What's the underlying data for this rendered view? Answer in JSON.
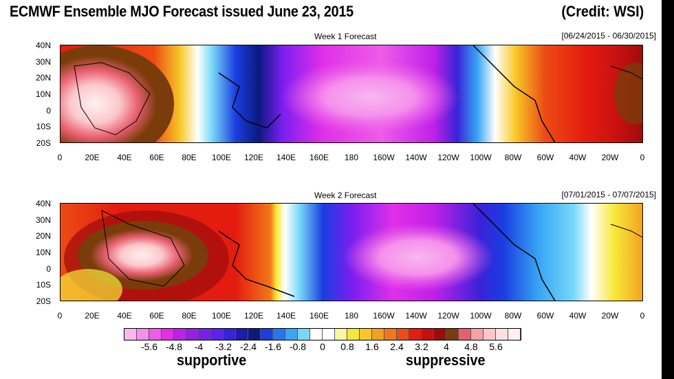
{
  "header": {
    "title": "ECMWF Ensemble MJO Forecast issued June 23, 2015",
    "credit": "(Credit: WSI)"
  },
  "panels": [
    {
      "title": "Week 1 Forecast",
      "date_range": "[06/24/2015 - 06/30/2015]"
    },
    {
      "title": "Week 2 Forecast",
      "date_range": "[07/01/2015 - 07/07/2015]"
    }
  ],
  "lat_labels": [
    "40N",
    "30N",
    "20N",
    "10N",
    "0",
    "10S",
    "20S"
  ],
  "lon_labels": [
    "0",
    "20E",
    "40E",
    "60E",
    "80E",
    "100E",
    "120E",
    "140E",
    "160E",
    "180",
    "160W",
    "140W",
    "120W",
    "100W",
    "80W",
    "60W",
    "40W",
    "20W",
    "0"
  ],
  "colorbar": {
    "labels": [
      "-5.6",
      "-4.8",
      "-4",
      "-3.2",
      "-2.4",
      "-1.6",
      "-0.8",
      "0",
      "0.8",
      "1.6",
      "2.4",
      "3.2",
      "4",
      "4.8",
      "5.6"
    ],
    "colors": [
      "#f8b8f0",
      "#f590ec",
      "#ee5ce8",
      "#e030e8",
      "#c020e8",
      "#9b1ee8",
      "#7a1ef0",
      "#5a22f0",
      "#3a22d8",
      "#1c1ca8",
      "#0a1a80",
      "#1a3ee0",
      "#2a74f0",
      "#38a6f4",
      "#78d8f8",
      "#ffffff",
      "#ffffff",
      "#f8f8a0",
      "#f6e838",
      "#f8c828",
      "#f4a020",
      "#f27818",
      "#ec4c14",
      "#e41c10",
      "#c41010",
      "#9c0c0c",
      "#7a3c0a",
      "#e86070",
      "#f8a0a8",
      "#fcc8cc",
      "#fde0e2",
      "#fff0f0"
    ],
    "supportive_label": "supportive",
    "suppressive_label": "suppressive"
  }
}
